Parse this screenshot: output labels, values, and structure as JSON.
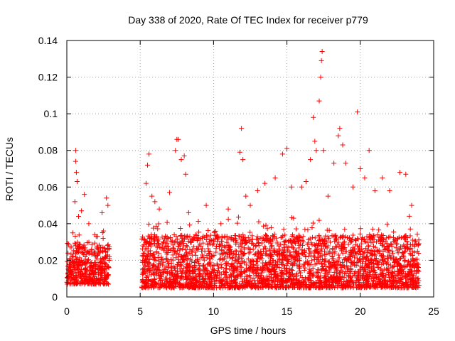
{
  "chart_data": {
    "type": "scatter",
    "title": "Day 338 of 2020, Rate Of TEC Index for receiver p779",
    "xlabel": "GPS time / hours",
    "ylabel": "ROTI / TECUs",
    "xlim": [
      0,
      25
    ],
    "ylim": [
      0,
      0.14
    ],
    "x_ticks": [
      0,
      5,
      10,
      15,
      20,
      25
    ],
    "x_tick_labels": [
      "0",
      "5",
      "10",
      "15",
      "20",
      "25"
    ],
    "y_ticks": [
      0,
      0.02,
      0.04,
      0.06,
      0.08,
      0.1,
      0.12,
      0.14
    ],
    "y_tick_labels": [
      "0",
      "0.02",
      "0.04",
      "0.06",
      "0.08",
      "0.1",
      "0.12",
      "0.14"
    ],
    "grid": true,
    "marker": "plus",
    "color": "#ff0000",
    "series": [
      {
        "name": "ROTI",
        "points": [
          [
            0.2,
            0.021
          ],
          [
            0.4,
            0.035
          ],
          [
            0.6,
            0.08
          ],
          [
            0.6,
            0.074
          ],
          [
            0.65,
            0.068
          ],
          [
            0.7,
            0.063
          ],
          [
            0.55,
            0.052
          ],
          [
            0.8,
            0.044
          ],
          [
            1.0,
            0.047
          ],
          [
            1.2,
            0.056
          ],
          [
            1.5,
            0.04
          ],
          [
            2.0,
            0.033
          ],
          [
            2.5,
            0.036
          ],
          [
            2.7,
            0.054
          ],
          [
            2.8,
            0.05
          ],
          [
            2.4,
            0.046
          ],
          [
            5.4,
            0.062
          ],
          [
            5.5,
            0.072
          ],
          [
            5.6,
            0.078
          ],
          [
            5.8,
            0.055
          ],
          [
            6.0,
            0.052
          ],
          [
            6.3,
            0.048
          ],
          [
            7.0,
            0.057
          ],
          [
            7.4,
            0.08
          ],
          [
            7.5,
            0.086
          ],
          [
            7.6,
            0.086
          ],
          [
            7.8,
            0.075
          ],
          [
            8.0,
            0.077
          ],
          [
            8.1,
            0.067
          ],
          [
            8.3,
            0.046
          ],
          [
            9.5,
            0.05
          ],
          [
            10.5,
            0.04
          ],
          [
            11.0,
            0.048
          ],
          [
            11.8,
            0.079
          ],
          [
            11.9,
            0.092
          ],
          [
            12.0,
            0.075
          ],
          [
            12.2,
            0.055
          ],
          [
            12.5,
            0.05
          ],
          [
            13.0,
            0.058
          ],
          [
            13.5,
            0.062
          ],
          [
            14.2,
            0.065
          ],
          [
            14.7,
            0.078
          ],
          [
            15.0,
            0.081
          ],
          [
            15.3,
            0.06
          ],
          [
            16.0,
            0.06
          ],
          [
            16.3,
            0.063
          ],
          [
            16.6,
            0.075
          ],
          [
            16.8,
            0.098
          ],
          [
            16.9,
            0.085
          ],
          [
            17.0,
            0.08
          ],
          [
            17.2,
            0.107
          ],
          [
            17.3,
            0.12
          ],
          [
            17.35,
            0.129
          ],
          [
            17.4,
            0.134
          ],
          [
            17.5,
            0.08
          ],
          [
            17.8,
            0.055
          ],
          [
            18.2,
            0.073
          ],
          [
            18.5,
            0.088
          ],
          [
            18.6,
            0.092
          ],
          [
            18.8,
            0.083
          ],
          [
            19.0,
            0.073
          ],
          [
            19.5,
            0.06
          ],
          [
            19.8,
            0.101
          ],
          [
            20.0,
            0.07
          ],
          [
            20.3,
            0.065
          ],
          [
            20.6,
            0.08
          ],
          [
            21.0,
            0.058
          ],
          [
            21.5,
            0.065
          ],
          [
            22.0,
            0.058
          ],
          [
            22.7,
            0.068
          ],
          [
            23.1,
            0.067
          ],
          [
            23.5,
            0.05
          ],
          [
            23.9,
            0.025
          ]
        ]
      }
    ],
    "background_density": [
      {
        "from": 0,
        "to": 2.9,
        "low": 0.007,
        "high": 0.03
      },
      {
        "from": 5.1,
        "to": 24.0,
        "low": 0.005,
        "high": 0.034
      }
    ]
  }
}
